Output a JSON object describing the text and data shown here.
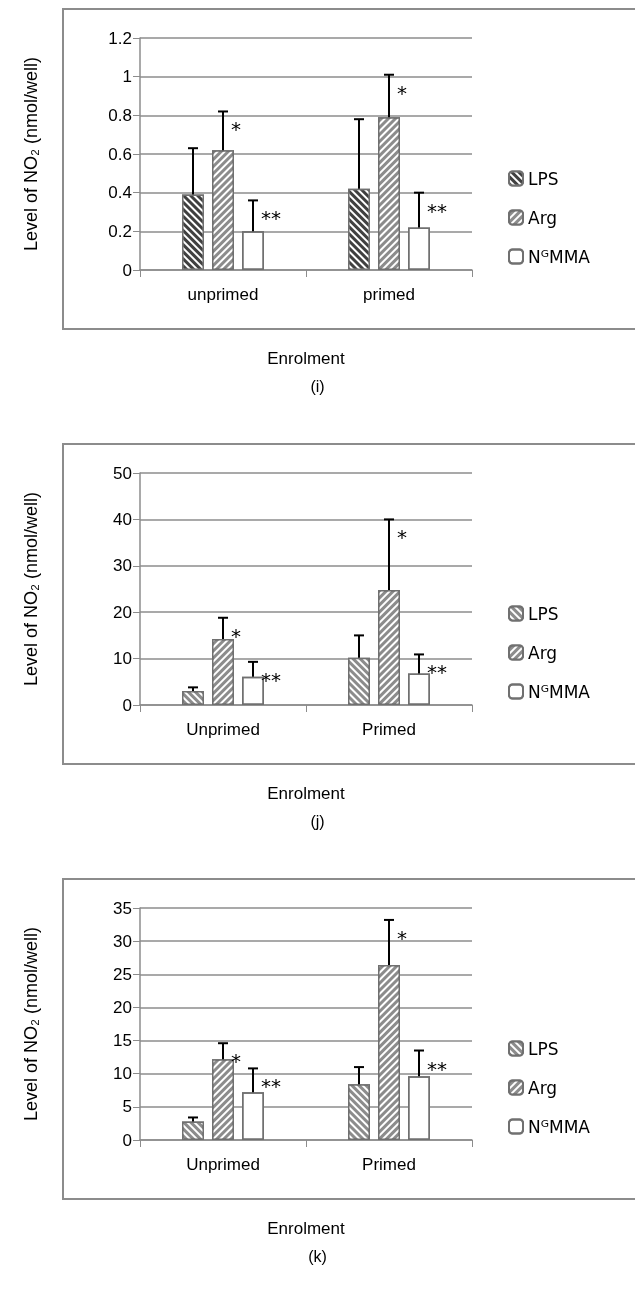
{
  "chart_data": [
    {
      "type": "bar",
      "xlabel": "Enrolment",
      "ylabel": "Level of NO₂ (nmol/well)",
      "categories": [
        "unprimed",
        "primed"
      ],
      "ylim": [
        0,
        1.2
      ],
      "yticks": [
        0,
        0.2,
        0.4,
        0.6,
        0.8,
        1,
        1.2
      ],
      "grid": "y",
      "legend": "right",
      "series": [
        {
          "name": "LPS",
          "color": "#404040",
          "values": [
            0.39,
            0.42
          ],
          "errors": [
            [
              0.39,
              0.63
            ],
            [
              0.42,
              0.78
            ]
          ]
        },
        {
          "name": "Arg",
          "color": "#8c8c8c",
          "values": [
            0.62,
            0.79
          ],
          "errors": [
            [
              0.62,
              0.82
            ],
            [
              0.79,
              1.01
            ]
          ]
        },
        {
          "name": "NᴳMMA",
          "color": "#ffffff",
          "values": [
            0.2,
            0.22
          ],
          "errors": [
            [
              0.2,
              0.36
            ],
            [
              0.22,
              0.4
            ]
          ]
        }
      ],
      "title": "(i)",
      "annotations": [
        {
          "text": "*",
          "x": "unprimed",
          "y": 0.82
        },
        "**",
        {
          "text": "*",
          "x": "primed",
          "y": 1.01
        },
        "**"
      ]
    },
    {
      "type": "bar",
      "xlabel": "Enrolment",
      "ylabel": "Level of NO₂ (nmol/well)",
      "categories": [
        "Unprimed",
        "Primed"
      ],
      "ylim": [
        0,
        50
      ],
      "yticks": [
        0,
        10,
        20,
        30,
        40,
        50
      ],
      "grid": "y",
      "legend": "right",
      "series": [
        {
          "name": "LPS",
          "color": "#8c8c8c",
          "values": [
            3,
            10.2
          ],
          "errors": [
            [
              3,
              3.8
            ],
            [
              10.2,
              15
            ]
          ]
        },
        {
          "name": "Arg",
          "color": "#8c8c8c",
          "values": [
            14.2,
            24.8
          ],
          "errors": [
            [
              14.2,
              18.8
            ],
            [
              24.8,
              40
            ]
          ]
        },
        {
          "name": "NᴳMMA",
          "color": "#ffffff",
          "values": [
            6.1,
            6.8
          ],
          "errors": [
            [
              6.1,
              9.3
            ],
            [
              6.8,
              10.9
            ]
          ]
        }
      ],
      "title": "(j)",
      "annotations": [
        {
          "text": "*",
          "x": "Unprimed",
          "y": 18.8
        },
        "**",
        {
          "text": "*",
          "x": "Primed",
          "y": 40
        },
        "**"
      ]
    },
    {
      "type": "bar",
      "xlabel": "Enrolment",
      "ylabel": "Level of NO₂ (nmol/well)",
      "categories": [
        "Unprimed",
        "Primed"
      ],
      "ylim": [
        0,
        35
      ],
      "yticks": [
        0,
        5,
        10,
        15,
        20,
        25,
        30,
        35
      ],
      "grid": "y",
      "legend": "right",
      "series": [
        {
          "name": "LPS",
          "color": "#8c8c8c",
          "values": [
            2.8,
            8.4
          ],
          "errors": [
            [
              2.8,
              3.4
            ],
            [
              8.4,
              11
            ]
          ]
        },
        {
          "name": "Arg",
          "color": "#8c8c8c",
          "values": [
            12.2,
            26.4
          ],
          "errors": [
            [
              12.2,
              14.6
            ],
            [
              26.4,
              33.2
            ]
          ]
        },
        {
          "name": "NᴳMMA",
          "color": "#ffffff",
          "values": [
            7.2,
            9.6
          ],
          "errors": [
            [
              7.2,
              10.8
            ],
            [
              9.6,
              13.5
            ]
          ]
        }
      ],
      "title": "(k)",
      "annotations": [
        {
          "text": "*",
          "x": "Unprimed",
          "y": 14.6
        },
        "**",
        {
          "text": "*",
          "x": "Primed",
          "y": 33.2
        },
        "**"
      ]
    }
  ]
}
